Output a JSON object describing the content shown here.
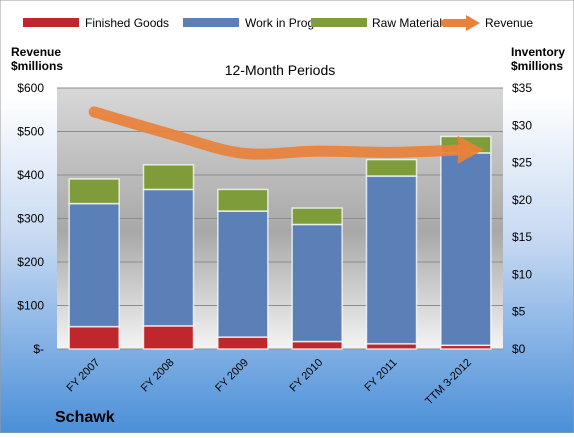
{
  "chart_data": {
    "type": "bar",
    "subtitle": "12-Month Periods",
    "company": "Schawk",
    "left_axis_label": [
      "Revenue",
      "$millions"
    ],
    "right_axis_label": [
      "Inventory",
      "$millions"
    ],
    "categories": [
      "FY 2007",
      "FY 2008",
      "FY 2009",
      "FY 2010",
      "FY 2011",
      "TTM 3-2012"
    ],
    "left_ticks": [
      "$-",
      "$100",
      "$200",
      "$300",
      "$400",
      "$500",
      "$600"
    ],
    "right_ticks": [
      "$0",
      "$5",
      "$10",
      "$15",
      "$20",
      "$25",
      "$30",
      "$35"
    ],
    "ylim_left": [
      0,
      600
    ],
    "ylim_right": [
      0,
      35
    ],
    "grid": true,
    "legend_position": "top",
    "stacked_series": [
      {
        "name": "Finished Goods",
        "color": "#c0272d",
        "values": [
          3.0,
          3.1,
          1.6,
          1.0,
          0.7,
          0.5
        ]
      },
      {
        "name": "Work in Progress",
        "color": "#5b80b8",
        "values": [
          16.5,
          18.3,
          16.9,
          15.7,
          22.5,
          25.8
        ]
      },
      {
        "name": "Raw Materials",
        "color": "#7e9d3a",
        "values": [
          3.3,
          3.3,
          2.9,
          2.2,
          2.2,
          2.2
        ]
      }
    ],
    "line_series": {
      "name": "Revenue",
      "color": "#e8813a",
      "values": [
        545,
        495,
        450,
        455,
        452,
        458
      ]
    }
  }
}
